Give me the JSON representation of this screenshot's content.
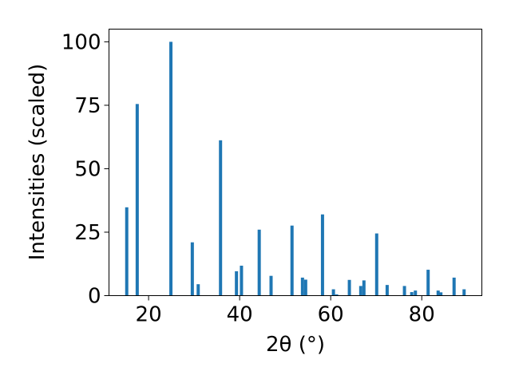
{
  "chart_data": {
    "type": "bar",
    "title": "",
    "xlabel": "2θ (°)",
    "ylabel": "Intensities (scaled)",
    "xlim": [
      11.3,
      93.2
    ],
    "ylim": [
      0,
      105
    ],
    "xticks": [
      20,
      40,
      60,
      80
    ],
    "yticks": [
      0,
      25,
      50,
      75,
      100
    ],
    "grid": false,
    "bar_width_deg": 0.7,
    "color": "#1f77b4",
    "x": [
      15.2,
      17.5,
      24.9,
      29.6,
      30.9,
      35.8,
      39.3,
      40.4,
      44.3,
      46.9,
      51.5,
      53.8,
      54.5,
      58.2,
      60.6,
      61.3,
      64.1,
      66.6,
      67.3,
      70.1,
      72.4,
      76.2,
      77.8,
      78.6,
      81.4,
      83.6,
      84.2,
      87.1,
      89.3
    ],
    "values": [
      34.8,
      75.5,
      100.0,
      21.0,
      4.5,
      61.2,
      9.6,
      11.8,
      26.0,
      7.8,
      27.6,
      7.1,
      6.3,
      32.0,
      2.5,
      0.5,
      6.2,
      3.8,
      6.0,
      24.5,
      4.2,
      3.8,
      1.4,
      2.0,
      10.2,
      2.0,
      1.3,
      7.1,
      2.5
    ]
  }
}
